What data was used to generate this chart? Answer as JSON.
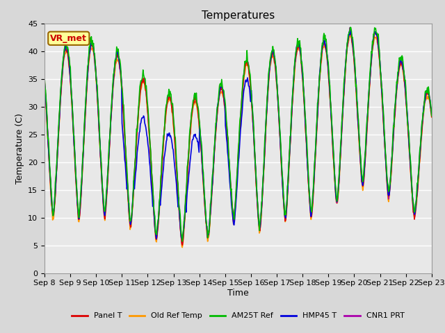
{
  "title": "Temperatures",
  "xlabel": "Time",
  "ylabel": "Temperature (C)",
  "ylim": [
    0,
    45
  ],
  "annotation": "VR_met",
  "annotation_color": "#cc0000",
  "annotation_bg": "#ffff99",
  "annotation_border": "#996600",
  "x_tick_labels": [
    "Sep 8",
    "Sep 9",
    "Sep 10",
    "Sep 11",
    "Sep 12",
    "Sep 13",
    "Sep 14",
    "Sep 15",
    "Sep 16",
    "Sep 17",
    "Sep 18",
    "Sep 19",
    "Sep 20",
    "Sep 21",
    "Sep 22",
    "Sep 23"
  ],
  "series_order": [
    "Old Ref Temp",
    "CNR1 PRT",
    "Panel T",
    "HMP45 T",
    "AM25T Ref"
  ],
  "legend_order": [
    "Panel T",
    "Old Ref Temp",
    "AM25T Ref",
    "HMP45 T",
    "CNR1 PRT"
  ],
  "series": {
    "Panel T": {
      "color": "#dd0000",
      "lw": 1.2
    },
    "Old Ref Temp": {
      "color": "#ff9900",
      "lw": 1.2
    },
    "AM25T Ref": {
      "color": "#00bb00",
      "lw": 1.2
    },
    "HMP45 T": {
      "color": "#0000dd",
      "lw": 1.2
    },
    "CNR1 PRT": {
      "color": "#aa00aa",
      "lw": 1.2
    }
  },
  "bg_color": "#d8d8d8",
  "plot_bg": "#e8e8e8",
  "grid_color": "#ffffff",
  "title_fontsize": 11,
  "label_fontsize": 9,
  "tick_fontsize": 8
}
